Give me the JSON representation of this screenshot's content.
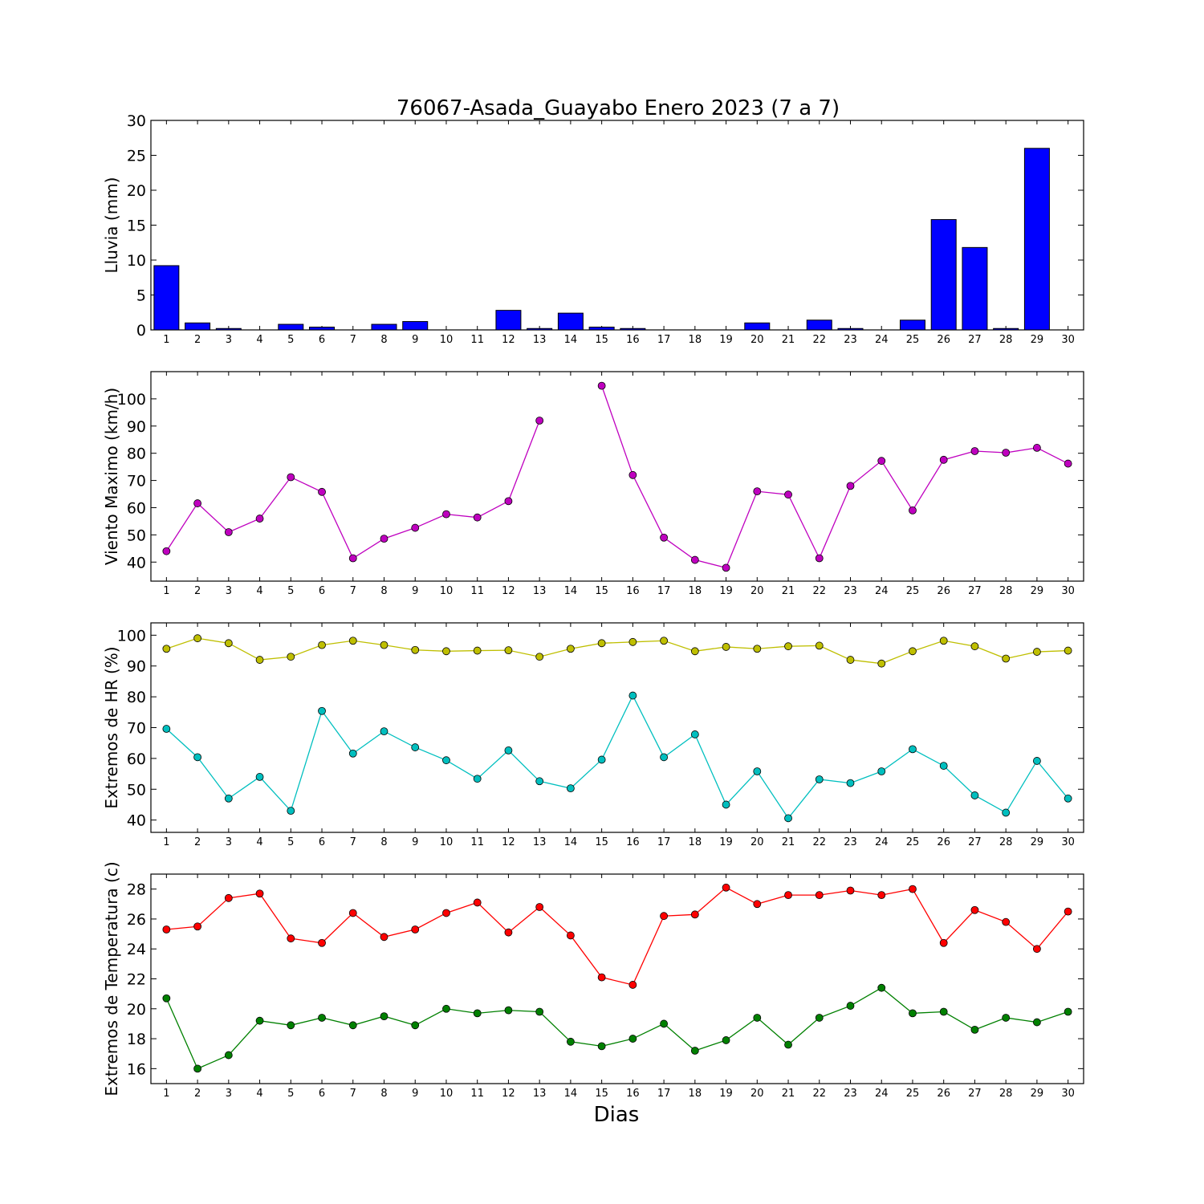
{
  "figure": {
    "title": "76067-Asada_Guayabo Enero 2023  (7 a 7)",
    "xlabel": "Dias"
  },
  "chart_data": [
    {
      "type": "bar",
      "ylabel": "Lluvia (mm)",
      "ylim": [
        0,
        30
      ],
      "yticks": [
        0,
        5,
        10,
        15,
        20,
        25,
        30
      ],
      "xlim": [
        0.5,
        30.5
      ],
      "x": [
        1,
        2,
        3,
        4,
        5,
        6,
        7,
        8,
        9,
        10,
        11,
        12,
        13,
        14,
        15,
        16,
        17,
        18,
        19,
        20,
        21,
        22,
        23,
        24,
        25,
        26,
        27,
        28,
        29,
        30
      ],
      "series": [
        {
          "color": "#0000ff",
          "values": [
            9.2,
            1.0,
            0.2,
            0.0,
            0.8,
            0.4,
            0.0,
            0.8,
            1.2,
            0.0,
            0.0,
            2.8,
            0.2,
            2.4,
            0.4,
            0.2,
            0.0,
            0.0,
            0.0,
            1.0,
            0.0,
            1.4,
            0.2,
            0.0,
            1.4,
            15.8,
            11.8,
            0.2,
            26.0,
            0.0
          ]
        }
      ]
    },
    {
      "type": "line",
      "ylabel": "Viento Maximo (km/h)",
      "ylim": [
        33,
        110
      ],
      "yticks": [
        40,
        50,
        60,
        70,
        80,
        90,
        100
      ],
      "xlim": [
        0.5,
        30.5
      ],
      "x": [
        1,
        2,
        3,
        4,
        5,
        6,
        7,
        8,
        9,
        10,
        11,
        12,
        13,
        14,
        15,
        16,
        17,
        18,
        19,
        20,
        21,
        22,
        23,
        24,
        25,
        26,
        27,
        28,
        29,
        30
      ],
      "series": [
        {
          "color": "#bf00bf",
          "values": [
            44,
            61.6,
            51,
            56,
            71.2,
            65.8,
            41.4,
            48.6,
            52.6,
            57.6,
            56.4,
            62.4,
            92,
            null,
            104.8,
            72,
            49,
            40.8,
            37.9,
            66,
            64.8,
            41.4,
            68,
            77.2,
            59,
            77.6,
            80.8,
            80.2,
            82,
            76.2
          ]
        }
      ]
    },
    {
      "type": "line",
      "ylabel": "Extremos de HR (%)",
      "ylim": [
        36,
        104
      ],
      "yticks": [
        40,
        50,
        60,
        70,
        80,
        90,
        100
      ],
      "xlim": [
        0.5,
        30.5
      ],
      "x": [
        1,
        2,
        3,
        4,
        5,
        6,
        7,
        8,
        9,
        10,
        11,
        12,
        13,
        14,
        15,
        16,
        17,
        18,
        19,
        20,
        21,
        22,
        23,
        24,
        25,
        26,
        27,
        28,
        29,
        30
      ],
      "series": [
        {
          "color": "#bfbf00",
          "values": [
            95.6,
            99,
            97.4,
            92,
            93,
            96.8,
            98.2,
            96.8,
            95.2,
            94.8,
            95,
            95.1,
            93,
            95.6,
            97.4,
            97.8,
            98.2,
            94.8,
            96.2,
            95.6,
            96.4,
            96.6,
            92,
            90.8,
            94.8,
            98.2,
            96.4,
            92.4,
            94.6,
            95
          ]
        },
        {
          "color": "#00bfbf",
          "values": [
            69.6,
            60.4,
            47,
            54,
            43,
            75.4,
            61.6,
            68.8,
            63.6,
            59.4,
            53.4,
            62.6,
            52.6,
            50.3,
            59.6,
            80.4,
            60.4,
            67.8,
            45,
            55.8,
            40.6,
            53.2,
            52,
            55.8,
            63,
            57.6,
            48,
            42.4,
            59.2,
            47
          ]
        }
      ]
    },
    {
      "type": "line",
      "ylabel": "Extremos de Temperatura (c)",
      "ylim": [
        15,
        29
      ],
      "yticks": [
        16,
        18,
        20,
        22,
        24,
        26,
        28
      ],
      "xlim": [
        0.5,
        30.5
      ],
      "x": [
        1,
        2,
        3,
        4,
        5,
        6,
        7,
        8,
        9,
        10,
        11,
        12,
        13,
        14,
        15,
        16,
        17,
        18,
        19,
        20,
        21,
        22,
        23,
        24,
        25,
        26,
        27,
        28,
        29,
        30
      ],
      "series": [
        {
          "color": "#ff0000",
          "values": [
            25.3,
            25.5,
            27.4,
            27.7,
            24.7,
            24.4,
            26.4,
            24.8,
            25.3,
            26.4,
            27.1,
            25.1,
            26.8,
            24.9,
            22.1,
            21.6,
            26.2,
            26.3,
            28.1,
            27,
            27.6,
            27.6,
            27.9,
            27.6,
            28,
            24.4,
            26.6,
            25.8,
            24,
            26.5
          ]
        },
        {
          "color": "#008000",
          "values": [
            20.7,
            16,
            16.9,
            19.2,
            18.9,
            19.4,
            18.9,
            19.5,
            18.9,
            20,
            19.7,
            19.9,
            19.8,
            17.8,
            17.5,
            18,
            19,
            17.2,
            17.9,
            19.4,
            17.6,
            19.4,
            20.2,
            21.4,
            19.7,
            19.8,
            18.6,
            19.4,
            19.1,
            19.8
          ]
        }
      ]
    }
  ]
}
